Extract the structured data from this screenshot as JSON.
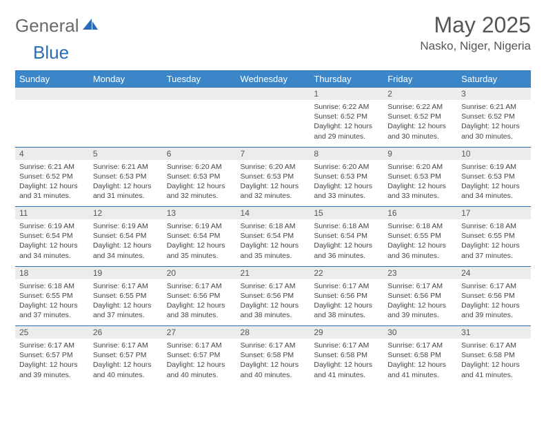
{
  "brand": {
    "part1": "General",
    "part2": "Blue"
  },
  "title": "May 2025",
  "location": "Nasko, Niger, Nigeria",
  "colors": {
    "header_bg": "#3b86c8",
    "header_text": "#ffffff",
    "border": "#2a6db3",
    "daynum_bg": "#ececec",
    "text": "#444444",
    "title_color": "#555555",
    "logo_gray": "#6a6a6a",
    "logo_blue": "#2a6db3"
  },
  "day_names": [
    "Sunday",
    "Monday",
    "Tuesday",
    "Wednesday",
    "Thursday",
    "Friday",
    "Saturday"
  ],
  "weeks": [
    {
      "nums": [
        "",
        "",
        "",
        "",
        "1",
        "2",
        "3"
      ],
      "cells": [
        {},
        {},
        {},
        {},
        {
          "sunrise": "Sunrise: 6:22 AM",
          "sunset": "Sunset: 6:52 PM",
          "day1": "Daylight: 12 hours",
          "day2": "and 29 minutes."
        },
        {
          "sunrise": "Sunrise: 6:22 AM",
          "sunset": "Sunset: 6:52 PM",
          "day1": "Daylight: 12 hours",
          "day2": "and 30 minutes."
        },
        {
          "sunrise": "Sunrise: 6:21 AM",
          "sunset": "Sunset: 6:52 PM",
          "day1": "Daylight: 12 hours",
          "day2": "and 30 minutes."
        }
      ]
    },
    {
      "nums": [
        "4",
        "5",
        "6",
        "7",
        "8",
        "9",
        "10"
      ],
      "cells": [
        {
          "sunrise": "Sunrise: 6:21 AM",
          "sunset": "Sunset: 6:52 PM",
          "day1": "Daylight: 12 hours",
          "day2": "and 31 minutes."
        },
        {
          "sunrise": "Sunrise: 6:21 AM",
          "sunset": "Sunset: 6:53 PM",
          "day1": "Daylight: 12 hours",
          "day2": "and 31 minutes."
        },
        {
          "sunrise": "Sunrise: 6:20 AM",
          "sunset": "Sunset: 6:53 PM",
          "day1": "Daylight: 12 hours",
          "day2": "and 32 minutes."
        },
        {
          "sunrise": "Sunrise: 6:20 AM",
          "sunset": "Sunset: 6:53 PM",
          "day1": "Daylight: 12 hours",
          "day2": "and 32 minutes."
        },
        {
          "sunrise": "Sunrise: 6:20 AM",
          "sunset": "Sunset: 6:53 PM",
          "day1": "Daylight: 12 hours",
          "day2": "and 33 minutes."
        },
        {
          "sunrise": "Sunrise: 6:20 AM",
          "sunset": "Sunset: 6:53 PM",
          "day1": "Daylight: 12 hours",
          "day2": "and 33 minutes."
        },
        {
          "sunrise": "Sunrise: 6:19 AM",
          "sunset": "Sunset: 6:53 PM",
          "day1": "Daylight: 12 hours",
          "day2": "and 34 minutes."
        }
      ]
    },
    {
      "nums": [
        "11",
        "12",
        "13",
        "14",
        "15",
        "16",
        "17"
      ],
      "cells": [
        {
          "sunrise": "Sunrise: 6:19 AM",
          "sunset": "Sunset: 6:54 PM",
          "day1": "Daylight: 12 hours",
          "day2": "and 34 minutes."
        },
        {
          "sunrise": "Sunrise: 6:19 AM",
          "sunset": "Sunset: 6:54 PM",
          "day1": "Daylight: 12 hours",
          "day2": "and 34 minutes."
        },
        {
          "sunrise": "Sunrise: 6:19 AM",
          "sunset": "Sunset: 6:54 PM",
          "day1": "Daylight: 12 hours",
          "day2": "and 35 minutes."
        },
        {
          "sunrise": "Sunrise: 6:18 AM",
          "sunset": "Sunset: 6:54 PM",
          "day1": "Daylight: 12 hours",
          "day2": "and 35 minutes."
        },
        {
          "sunrise": "Sunrise: 6:18 AM",
          "sunset": "Sunset: 6:54 PM",
          "day1": "Daylight: 12 hours",
          "day2": "and 36 minutes."
        },
        {
          "sunrise": "Sunrise: 6:18 AM",
          "sunset": "Sunset: 6:55 PM",
          "day1": "Daylight: 12 hours",
          "day2": "and 36 minutes."
        },
        {
          "sunrise": "Sunrise: 6:18 AM",
          "sunset": "Sunset: 6:55 PM",
          "day1": "Daylight: 12 hours",
          "day2": "and 37 minutes."
        }
      ]
    },
    {
      "nums": [
        "18",
        "19",
        "20",
        "21",
        "22",
        "23",
        "24"
      ],
      "cells": [
        {
          "sunrise": "Sunrise: 6:18 AM",
          "sunset": "Sunset: 6:55 PM",
          "day1": "Daylight: 12 hours",
          "day2": "and 37 minutes."
        },
        {
          "sunrise": "Sunrise: 6:17 AM",
          "sunset": "Sunset: 6:55 PM",
          "day1": "Daylight: 12 hours",
          "day2": "and 37 minutes."
        },
        {
          "sunrise": "Sunrise: 6:17 AM",
          "sunset": "Sunset: 6:56 PM",
          "day1": "Daylight: 12 hours",
          "day2": "and 38 minutes."
        },
        {
          "sunrise": "Sunrise: 6:17 AM",
          "sunset": "Sunset: 6:56 PM",
          "day1": "Daylight: 12 hours",
          "day2": "and 38 minutes."
        },
        {
          "sunrise": "Sunrise: 6:17 AM",
          "sunset": "Sunset: 6:56 PM",
          "day1": "Daylight: 12 hours",
          "day2": "and 38 minutes."
        },
        {
          "sunrise": "Sunrise: 6:17 AM",
          "sunset": "Sunset: 6:56 PM",
          "day1": "Daylight: 12 hours",
          "day2": "and 39 minutes."
        },
        {
          "sunrise": "Sunrise: 6:17 AM",
          "sunset": "Sunset: 6:56 PM",
          "day1": "Daylight: 12 hours",
          "day2": "and 39 minutes."
        }
      ]
    },
    {
      "nums": [
        "25",
        "26",
        "27",
        "28",
        "29",
        "30",
        "31"
      ],
      "cells": [
        {
          "sunrise": "Sunrise: 6:17 AM",
          "sunset": "Sunset: 6:57 PM",
          "day1": "Daylight: 12 hours",
          "day2": "and 39 minutes."
        },
        {
          "sunrise": "Sunrise: 6:17 AM",
          "sunset": "Sunset: 6:57 PM",
          "day1": "Daylight: 12 hours",
          "day2": "and 40 minutes."
        },
        {
          "sunrise": "Sunrise: 6:17 AM",
          "sunset": "Sunset: 6:57 PM",
          "day1": "Daylight: 12 hours",
          "day2": "and 40 minutes."
        },
        {
          "sunrise": "Sunrise: 6:17 AM",
          "sunset": "Sunset: 6:58 PM",
          "day1": "Daylight: 12 hours",
          "day2": "and 40 minutes."
        },
        {
          "sunrise": "Sunrise: 6:17 AM",
          "sunset": "Sunset: 6:58 PM",
          "day1": "Daylight: 12 hours",
          "day2": "and 41 minutes."
        },
        {
          "sunrise": "Sunrise: 6:17 AM",
          "sunset": "Sunset: 6:58 PM",
          "day1": "Daylight: 12 hours",
          "day2": "and 41 minutes."
        },
        {
          "sunrise": "Sunrise: 6:17 AM",
          "sunset": "Sunset: 6:58 PM",
          "day1": "Daylight: 12 hours",
          "day2": "and 41 minutes."
        }
      ]
    }
  ]
}
